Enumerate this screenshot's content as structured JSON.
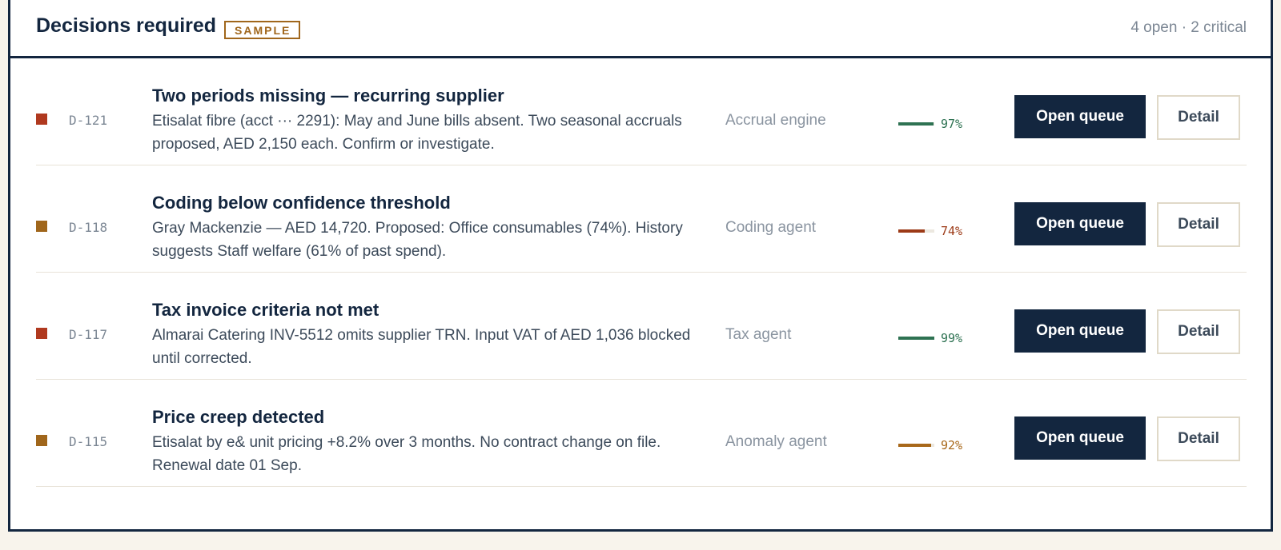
{
  "header": {
    "title": "Decisions required",
    "badge": "SAMPLE",
    "summary": "4 open · 2 critical"
  },
  "items": [
    {
      "severity_color": "#b0391f",
      "id": "D-121",
      "title": "Two periods missing — recurring supplier",
      "body": "Etisalat fibre (acct ··· 2291): May and June bills absent. Two seasonal accruals proposed, AED 2,150 each. Confirm or investigate.",
      "agent": "Accrual engine",
      "confidence": 97,
      "confidence_label": "97%",
      "confidence_color": "#2e7252",
      "primary_action": "Open queue",
      "secondary_action": "Detail"
    },
    {
      "severity_color": "#a0661b",
      "id": "D-118",
      "title": "Coding below confidence threshold",
      "body": "Gray Mackenzie — AED 14,720. Proposed: Office consumables (74%). History suggests Staff welfare (61% of past spend).",
      "agent": "Coding agent",
      "confidence": 74,
      "confidence_label": "74%",
      "confidence_color": "#9c3a17",
      "primary_action": "Open queue",
      "secondary_action": "Detail"
    },
    {
      "severity_color": "#b0391f",
      "id": "D-117",
      "title": "Tax invoice criteria not met",
      "body": "Almarai Catering INV-5512 omits supplier TRN. Input VAT of AED 1,036 blocked until corrected.",
      "agent": "Tax agent",
      "confidence": 99,
      "confidence_label": "99%",
      "confidence_color": "#2e7252",
      "primary_action": "Open queue",
      "secondary_action": "Detail"
    },
    {
      "severity_color": "#a0661b",
      "id": "D-115",
      "title": "Price creep detected",
      "body": "Etisalat by e& unit pricing +8.2% over 3 months. No contract change on file. Renewal date 01 Sep.",
      "agent": "Anomaly agent",
      "confidence": 92,
      "confidence_label": "92%",
      "confidence_color": "#a8681a",
      "primary_action": "Open queue",
      "secondary_action": "Detail"
    }
  ]
}
